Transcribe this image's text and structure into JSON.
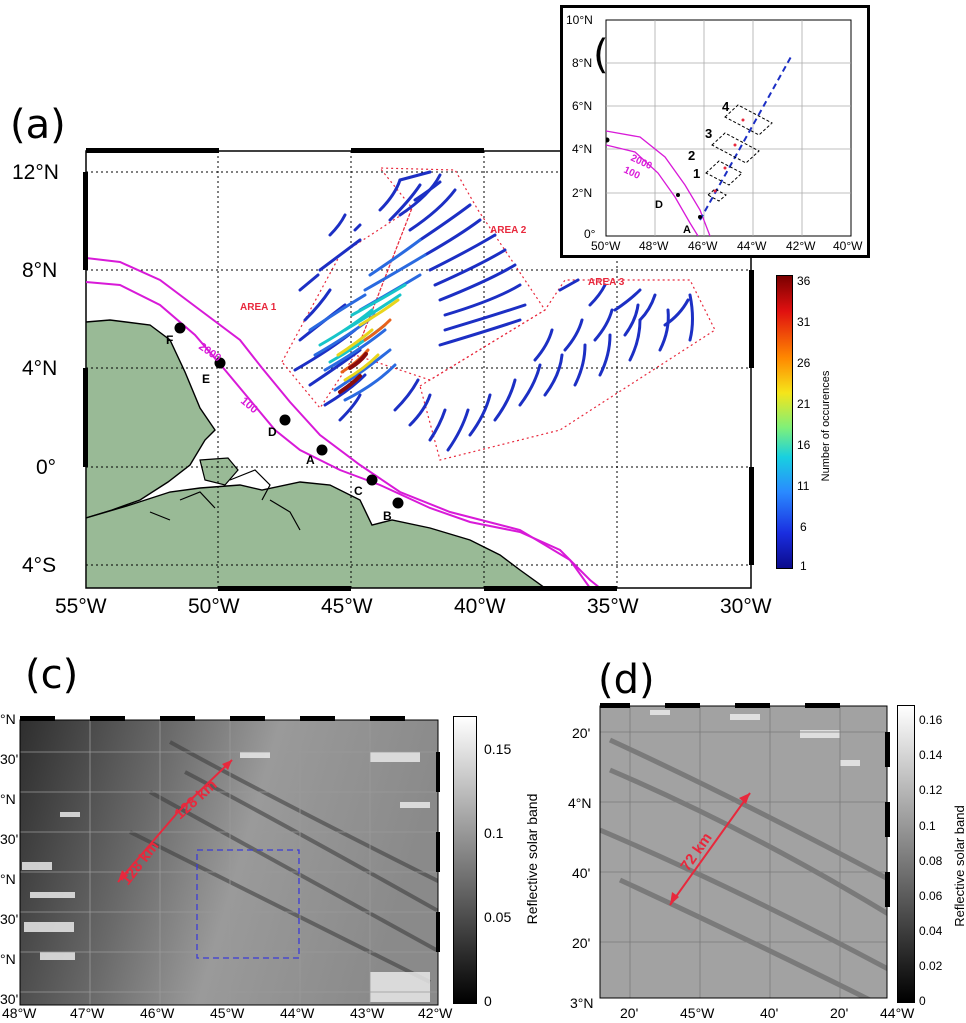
{
  "panels": {
    "a": {
      "letter": "(a)",
      "lat_ticks": [
        "12°N",
        "8°N",
        "4°N",
        "0°",
        "4°S"
      ],
      "lon_ticks": [
        "55°W",
        "50°W",
        "45°W",
        "40°W",
        "35°W",
        "30°W"
      ],
      "area_labels": [
        "AREA 1",
        "AREA 2",
        "AREA 3"
      ],
      "isobath_labels": [
        "2000",
        "100"
      ],
      "station_labels": [
        "A",
        "B",
        "C",
        "D",
        "E",
        "F"
      ],
      "colorbar": {
        "label": "Number of occurences",
        "ticks": [
          "36",
          "31",
          "26",
          "21",
          "16",
          "11",
          "6",
          "1"
        ]
      },
      "colors": {
        "land": "#99ba96",
        "isobath": "#d81ad8",
        "box": "#e8283c",
        "waves_low": "#1c2fc4"
      }
    },
    "b": {
      "letter": "(b)",
      "lat_ticks": [
        "10°N",
        "8°N",
        "6°N",
        "4°N",
        "2°N",
        "0°"
      ],
      "lon_ticks": [
        "50°W",
        "48°W",
        "46°W",
        "44°W",
        "42°W",
        "40°W"
      ],
      "isobath_labels": [
        "2000",
        "100"
      ],
      "box_labels": [
        "4",
        "3",
        "2",
        "1"
      ],
      "station_labels": [
        "D",
        "A"
      ]
    },
    "c": {
      "letter": "(c)",
      "lat_ticks": [
        "°N",
        "30'",
        "°N",
        "30'",
        "°N",
        "30'",
        "°N",
        "30'"
      ],
      "lon_ticks": [
        "48°W",
        "47°W",
        "46°W",
        "45°W",
        "44°W",
        "43°W",
        "42°W"
      ],
      "distance_labels": [
        "128 km",
        "128 km"
      ],
      "colorbar": {
        "label": "Reflective solar band",
        "ticks": [
          "0.15",
          "0.1",
          "0.05",
          "0"
        ]
      }
    },
    "d": {
      "letter": "(d)",
      "lat_ticks": [
        "20'",
        "4°N",
        "40'",
        "20'",
        "3°N"
      ],
      "lon_ticks": [
        "20'",
        "45°W",
        "40'",
        "20'",
        "44°W"
      ],
      "distance_label": "72 km",
      "colorbar": {
        "label": "Reflective solar band",
        "ticks": [
          "0.16",
          "0.14",
          "0.12",
          "0.1",
          "0.08",
          "0.06",
          "0.04",
          "0.02",
          "0"
        ]
      }
    }
  }
}
